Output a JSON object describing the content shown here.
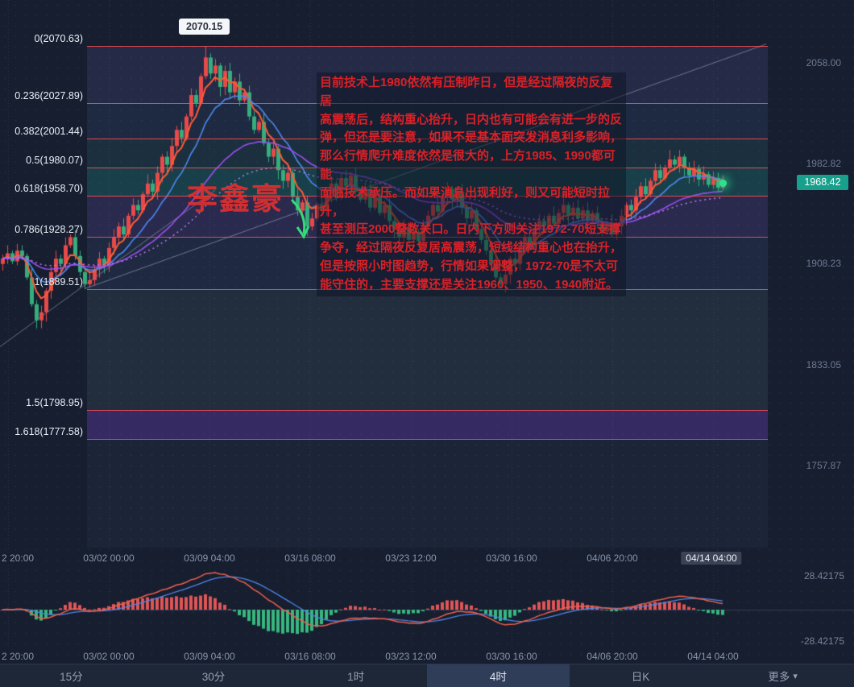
{
  "colors": {
    "bg": "#161e2f",
    "up": "#e84a4a",
    "down": "#36ad7c",
    "fib_line": "#ff5050",
    "ma_fast": "#ff5c35",
    "ma_mid": "#4d8bf0",
    "ma_slow": "#9d4ff2",
    "ma_dotted": "#c084f5",
    "trendline": "rgba(205,214,230,0.45)",
    "price_badge_bg": "#17a08b",
    "axis_text": "#8a95aa",
    "fib_text": "#e9eef7",
    "annotation_text": "#da2128",
    "macd_dif": "#f0604d",
    "macd_dea": "#4f86e8",
    "hist_pos": "#e05656",
    "hist_neg": "#37b87f"
  },
  "tooltip": {
    "price": "2070.15"
  },
  "watermark": {
    "text": "李鑫豪"
  },
  "annotation": {
    "text": "目前技术上1980依然有压制昨日，但是经过隔夜的反复居\n高震荡后，结构重心抬升，日内也有可能会有进一步的反\n弹，但还是要注意，如果不是基本面突发消息利多影响，\n那么行情爬升难度依然是很大的，上方1985、1990都可能\n面临技术承压。而如果消息出现利好，则又可能短时拉升，\n甚至测压2000整数关口。日内下方则关注1972-70短支撑\n争夺，经过隔夜反复居高震荡，短线结构重心也在抬升，\n但是按照小时图趋势，行情如果调整，1972-70是不太可\n能守住的，主要支撑还是关注1960、1950、1940附近。"
  },
  "price_axis": {
    "ticks": [
      {
        "label": "2058.00",
        "price": 2058.0
      },
      {
        "label": "1982.82",
        "price": 1982.82
      },
      {
        "label": "1908.23",
        "price": 1908.23
      },
      {
        "label": "1833.05",
        "price": 1833.05
      },
      {
        "label": "1757.87",
        "price": 1757.87
      }
    ],
    "current": "1968.42"
  },
  "time_axis": {
    "main": [
      "2 20:00",
      "03/02 00:00",
      "03/09 04:00",
      "03/16 08:00",
      "03/23 12:00",
      "03/30 16:00",
      "04/06 20:00",
      "04/14 04:00"
    ],
    "macd": [
      "2 20:00",
      "03/02 00:00",
      "03/09 04:00",
      "03/16 08:00",
      "03/23 12:00",
      "03/30 16:00",
      "04/06 20:00",
      "04/14 04:00"
    ],
    "highlight": "04/14 04:00"
  },
  "macd_axis": {
    "max": "28.42175",
    "min": "-28.42175"
  },
  "icons": {
    "chevron_down": "▾"
  },
  "tabs": {
    "items": [
      "15分",
      "30分",
      "1时",
      "4时",
      "日K",
      "更多"
    ],
    "active_index": 3
  },
  "chart_data": {
    "type": "candlestick",
    "timeframe": "4时",
    "last_price": 1968.42,
    "fib_levels": [
      {
        "text": "0(2070.63)",
        "label": "0",
        "price": 2070.63
      },
      {
        "text": "0.236(2027.89)",
        "label": "0.236",
        "price": 2027.89
      },
      {
        "text": "0.382(2001.44)",
        "label": "0.382",
        "price": 2001.44
      },
      {
        "text": "0.5(1980.07)",
        "label": "0.5",
        "price": 1980.07
      },
      {
        "text": "0.618(1958.70)",
        "label": "0.618",
        "price": 1958.7
      },
      {
        "text": "0.786(1928.27)",
        "label": "0.786",
        "price": 1928.27
      },
      {
        "text": "1(1889.51)",
        "label": "1",
        "price": 1889.51
      },
      {
        "text": "1.5(1798.95)",
        "label": "1.5",
        "price": 1798.95
      },
      {
        "text": "1.618(1777.58)",
        "label": "1.618",
        "price": 1777.58
      }
    ],
    "fib_bands": [
      {
        "from": 2070.63,
        "to": 2027.89,
        "color": "rgba(122,84,205,0.10)"
      },
      {
        "from": 2027.89,
        "to": 2001.44,
        "color": "rgba(64,99,198,0.08)"
      },
      {
        "from": 2001.44,
        "to": 1980.07,
        "color": "rgba(22,135,130,0.10)"
      },
      {
        "from": 1980.07,
        "to": 1958.7,
        "color": "rgba(16,160,145,0.22)"
      },
      {
        "from": 1958.7,
        "to": 1928.27,
        "color": "rgba(110,70,200,0.16)"
      },
      {
        "from": 1928.27,
        "to": 1889.51,
        "color": "rgba(58,80,160,0.10)"
      },
      {
        "from": 1889.51,
        "to": 1798.95,
        "color": "rgba(120,140,135,0.08)"
      },
      {
        "from": 1798.95,
        "to": 1777.58,
        "color": "rgba(112,58,200,0.30)"
      }
    ],
    "first_open": 1908,
    "closes": [
      1912,
      1916,
      1910,
      1918,
      1914,
      1898,
      1878,
      1866,
      1872,
      1888,
      1902,
      1912,
      1908,
      1922,
      1928,
      1914,
      1902,
      1893,
      1896,
      1904,
      1912,
      1908,
      1920,
      1928,
      1936,
      1930,
      1944,
      1952,
      1948,
      1960,
      1968,
      1962,
      1976,
      1988,
      1982,
      1996,
      2008,
      2002,
      2018,
      2034,
      2028,
      2048,
      2062,
      2050,
      2056,
      2040,
      2052,
      2036,
      2044,
      2030,
      2036,
      2018,
      2008,
      2014,
      1998,
      1988,
      1994,
      1978,
      1970,
      1976,
      1958,
      1948,
      1954,
      1936,
      1942,
      1952,
      1948,
      1960,
      1968,
      1962,
      1972,
      1966,
      1974,
      1962,
      1956,
      1964,
      1950,
      1958,
      1946,
      1952,
      1940,
      1934,
      1928,
      1935,
      1926,
      1932,
      1925,
      1936,
      1944,
      1952,
      1947,
      1958,
      1964,
      1956,
      1962,
      1950,
      1942,
      1948,
      1934,
      1926,
      1918,
      1908,
      1898,
      1893,
      1900,
      1912,
      1908,
      1920,
      1928,
      1922,
      1934,
      1940,
      1936,
      1944,
      1938,
      1946,
      1952,
      1944,
      1950,
      1942,
      1948,
      1940,
      1946,
      1938,
      1932,
      1938,
      1930,
      1936,
      1944,
      1952,
      1948,
      1958,
      1966,
      1960,
      1970,
      1978,
      1972,
      1980,
      1986,
      1982,
      1988,
      1980,
      1974,
      1979,
      1971,
      1975,
      1967,
      1972,
      1965,
      1968.42
    ],
    "wick_pattern": [
      3,
      6,
      2,
      5,
      4,
      2,
      7,
      3,
      5,
      2,
      4,
      6
    ],
    "overrides": {
      "7": {
        "low": 1860.0
      },
      "17": {
        "low": 1889.51
      },
      "42": {
        "high": 2070.63
      },
      "63": {
        "low": 1929.0
      },
      "86": {
        "low": 1921.0
      },
      "103": {
        "low": 1889.8
      },
      "149": {
        "high": 1974.0
      }
    },
    "emas": [
      {
        "period": 5,
        "color": "ma_fast",
        "width": 2.0
      },
      {
        "period": 12,
        "color": "ma_mid",
        "width": 1.6
      },
      {
        "period": 34,
        "color": "ma_slow",
        "width": 1.6
      },
      {
        "period": 55,
        "color": "ma_dotted",
        "width": 1.4,
        "dotted": true
      }
    ],
    "trendlines": [
      {
        "x1_i": 17,
        "p1": 1889.5,
        "x2_i": 158,
        "p2": 2072
      },
      {
        "x1_i": -1,
        "p1": 1845.0,
        "x2_i": 44,
        "p2": 1963
      }
    ],
    "macd": {
      "fast": 12,
      "slow": 26,
      "signal": 9,
      "range": [
        -28.42175,
        28.42175
      ]
    }
  }
}
